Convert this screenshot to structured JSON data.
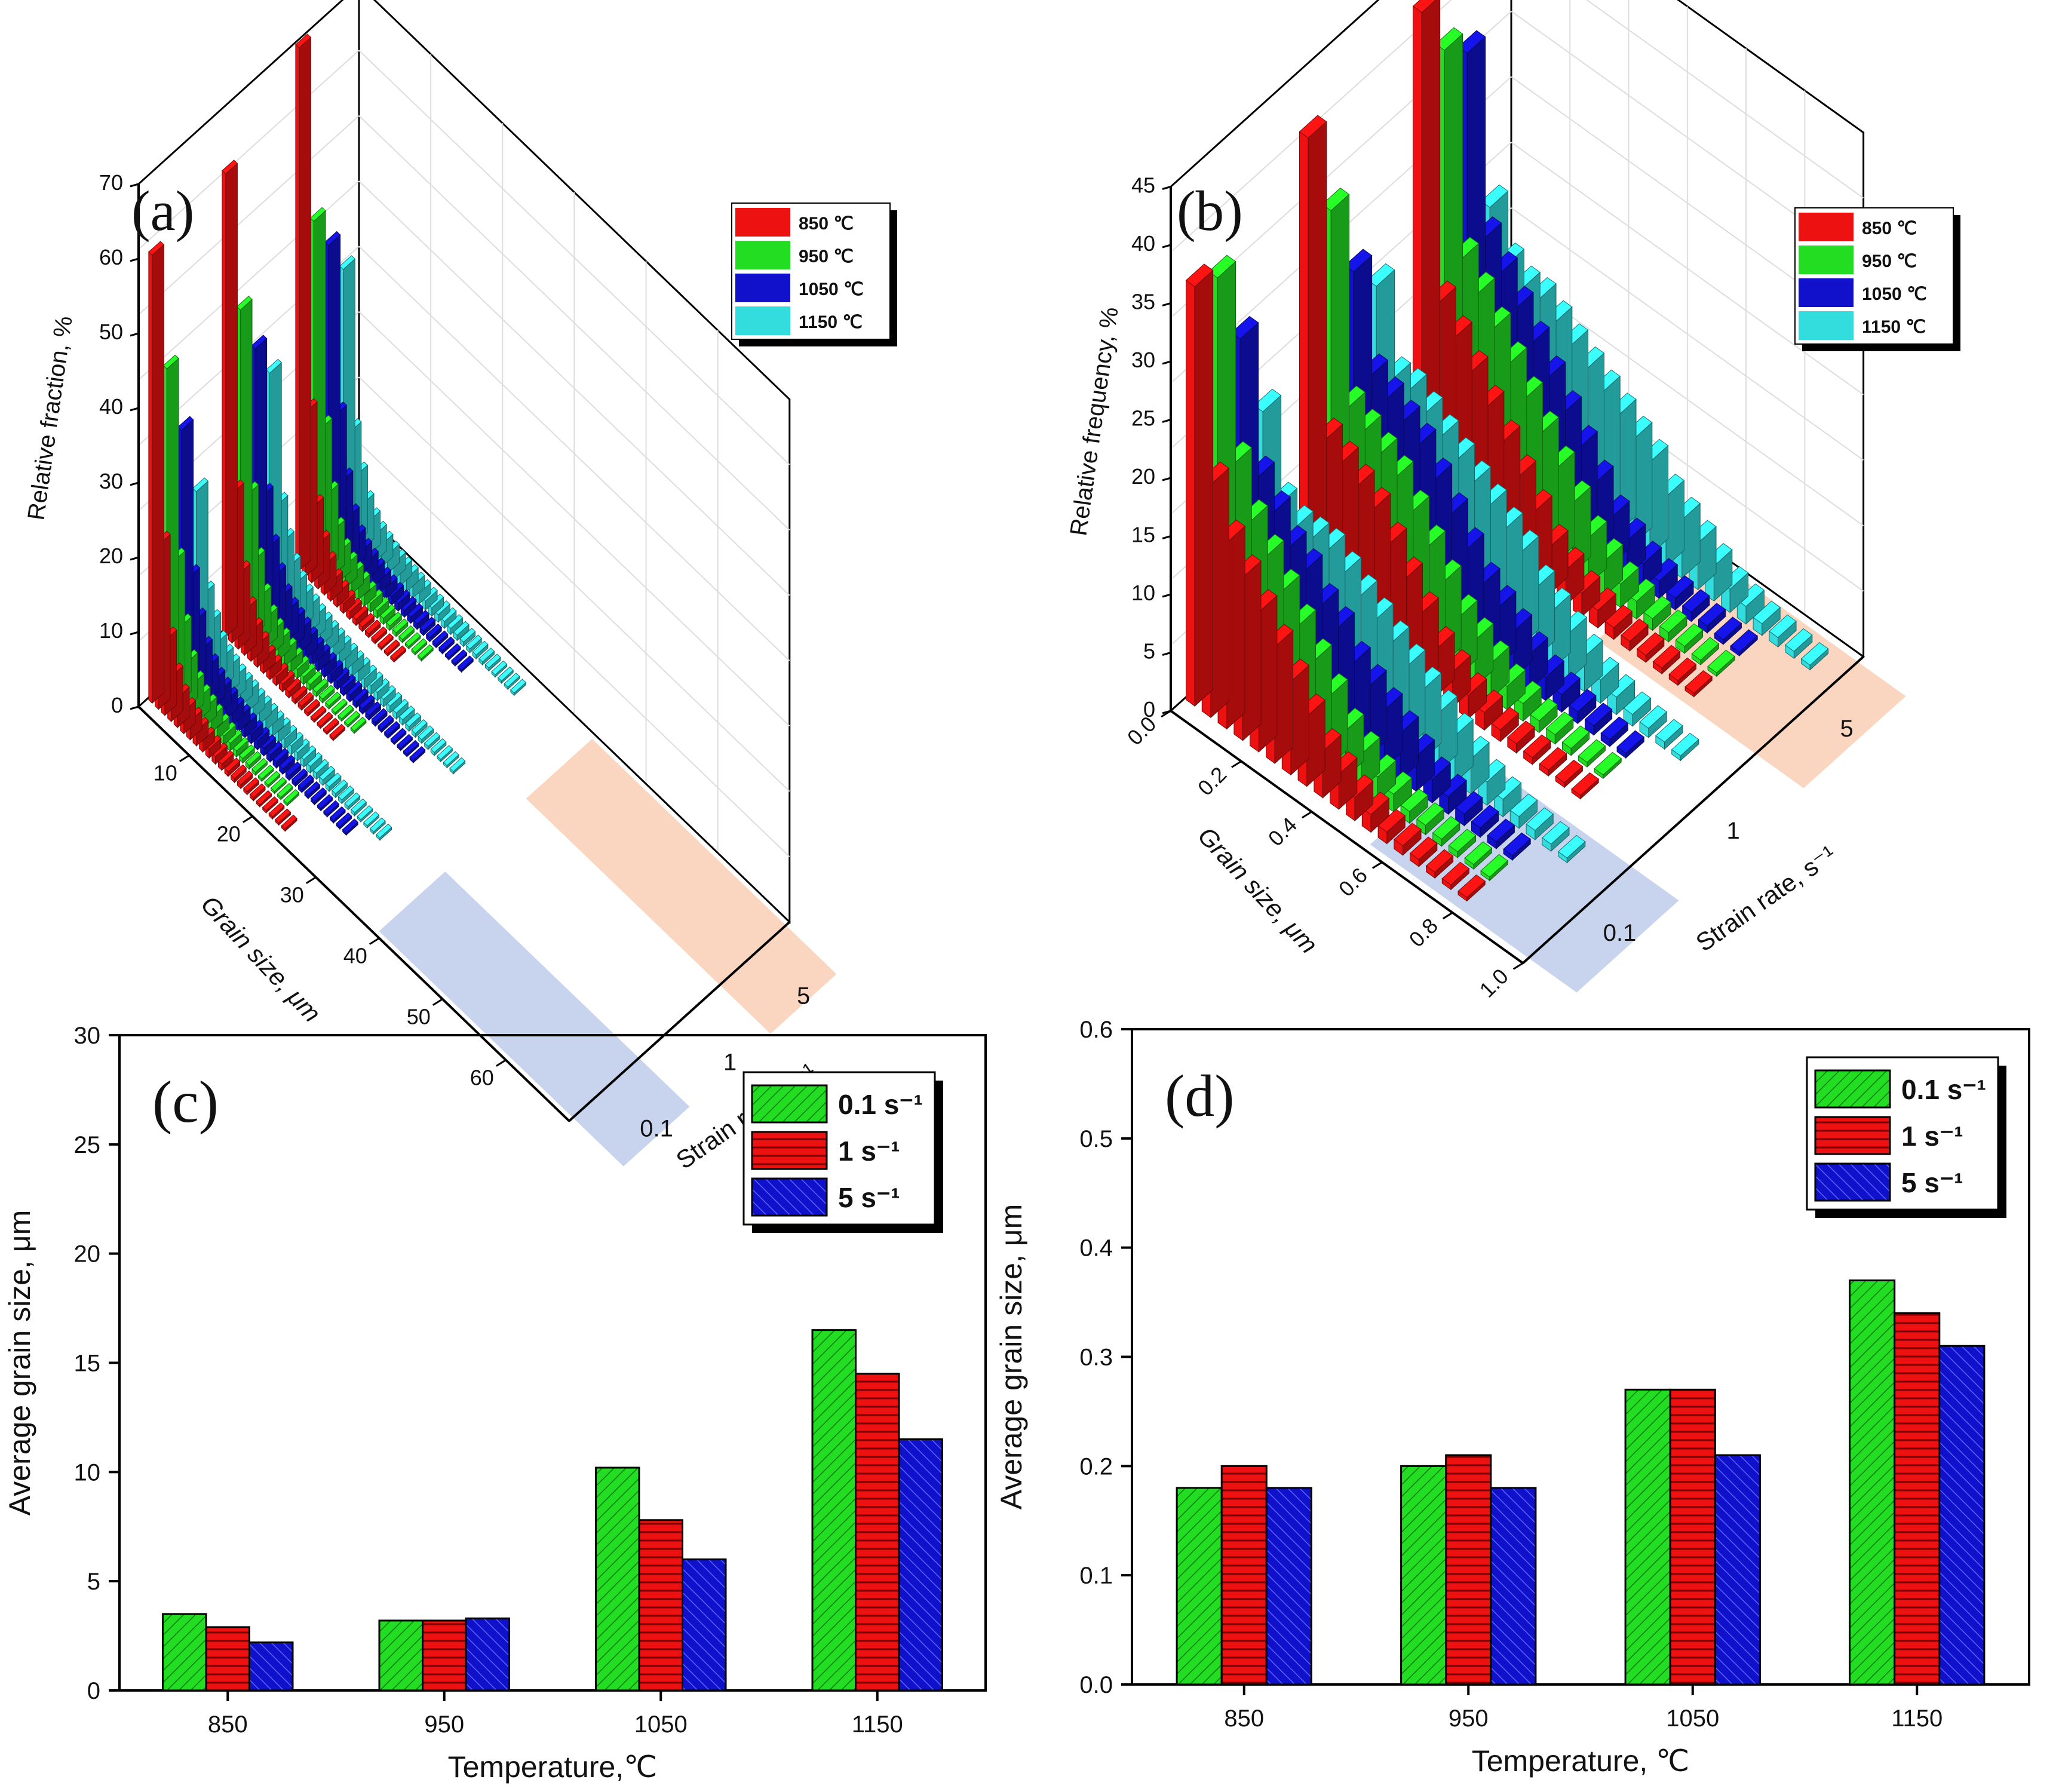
{
  "colors": {
    "green": "#22dd22",
    "red": "#ee1111",
    "blue": "#1111cc",
    "cyan": "#33dddd",
    "blue_plane": "#9aaedf",
    "orange_plane": "#f6b48c"
  },
  "chart_data": [
    {
      "panel_label": "(a)",
      "type": "bar3d",
      "zlabel": "Relative fraction, %",
      "xlabel": "Grain size, μm",
      "ylabel": "Strain rate, s⁻¹",
      "z_ticks": [
        "0",
        "10",
        "20",
        "30",
        "40",
        "50",
        "60",
        "70"
      ],
      "x_ticks": [
        "10",
        "20",
        "30",
        "40",
        "50",
        "60"
      ],
      "y_ticks": [
        "0.1",
        "1",
        "5"
      ],
      "zlim": [
        0,
        70
      ],
      "xlim": [
        0,
        65
      ],
      "legend": [
        "850 ℃",
        "950 ℃",
        "1050 ℃",
        "1150 ℃"
      ],
      "bin_width": 1,
      "series": [
        {
          "name": "850 ℃",
          "strain_rate": "0.1",
          "values": [
            60,
            22,
            10,
            6,
            4,
            3,
            2.5,
            2,
            1.5,
            1.2,
            1,
            0.8,
            0.6,
            0.5,
            0.5,
            0.4,
            0.4,
            0.3,
            0.3,
            0.3,
            0.2,
            0.2
          ]
        },
        {
          "name": "950 ℃",
          "strain_rate": "0.1",
          "values": [
            43,
            18,
            10,
            6,
            4,
            3,
            2.5,
            2,
            1.5,
            1.2,
            1,
            0.8,
            0.6,
            0.5,
            0.4,
            0.3,
            0.3,
            0.3,
            0.2,
            0.2
          ]
        },
        {
          "name": "1050 ℃",
          "strain_rate": "0.1",
          "values": [
            33,
            14,
            9,
            6,
            4.5,
            3.5,
            3,
            2.5,
            2,
            1.8,
            1.5,
            1.3,
            1.2,
            1,
            0.9,
            0.8,
            0.7,
            0.6,
            0.5,
            0.5,
            0.4,
            0.4,
            0.3,
            0.3,
            0.3,
            0.2,
            0.2
          ]
        },
        {
          "name": "1150 ℃",
          "strain_rate": "0.1",
          "values": [
            23,
            10,
            7,
            5,
            4,
            3.5,
            3,
            2.7,
            2.5,
            2.2,
            2,
            1.8,
            1.6,
            1.5,
            1.3,
            1.2,
            1.1,
            1,
            0.9,
            0.8,
            0.7,
            0.6,
            0.5,
            0.5,
            0.4,
            0.4,
            0.3,
            0.3,
            0.2,
            0.2
          ]
        },
        {
          "name": "850 ℃",
          "strain_rate": "1",
          "values": [
            62,
            20,
            10,
            6,
            4,
            3,
            2,
            1.5,
            1.2,
            1,
            0.8,
            0.6,
            0.5,
            0.4,
            0.3,
            0.3,
            0.2,
            0.2
          ]
        },
        {
          "name": "950 ℃",
          "strain_rate": "1",
          "values": [
            42,
            18,
            10,
            6,
            4,
            3,
            2.5,
            2,
            1.5,
            1.2,
            1,
            0.8,
            0.6,
            0.5,
            0.4,
            0.3,
            0.3,
            0.2,
            0.2
          ]
        },
        {
          "name": "1050 ℃",
          "strain_rate": "1",
          "values": [
            35,
            16,
            10,
            7,
            5,
            4,
            3.5,
            3,
            2.5,
            2,
            1.8,
            1.5,
            1.3,
            1.1,
            1,
            0.9,
            0.8,
            0.7,
            0.6,
            0.5,
            0.4,
            0.4,
            0.3,
            0.3,
            0.2,
            0.2
          ]
        },
        {
          "name": "1150 ℃",
          "strain_rate": "1",
          "values": [
            30,
            13,
            9,
            6.5,
            5,
            4,
            3.5,
            3,
            2.7,
            2.4,
            2.2,
            2,
            1.8,
            1.6,
            1.5,
            1.3,
            1.2,
            1.1,
            1,
            0.9,
            0.8,
            0.7,
            0.6,
            0.5,
            0.5,
            0.4,
            0.4,
            0.3,
            0.3,
            0.2
          ]
        },
        {
          "name": "850 ℃",
          "strain_rate": "5",
          "values": [
            70,
            22,
            10,
            6,
            4,
            2.5,
            1.8,
            1.3,
            1,
            0.8,
            0.6,
            0.5,
            0.4,
            0.3,
            0.3,
            0.2
          ]
        },
        {
          "name": "950 ℃",
          "strain_rate": "5",
          "values": [
            45,
            18,
            10,
            6,
            4,
            3,
            2.5,
            2,
            1.5,
            1.2,
            1,
            0.8,
            0.6,
            0.5,
            0.4,
            0.3,
            0.3,
            0.2
          ]
        },
        {
          "name": "1050 ℃",
          "strain_rate": "5",
          "values": [
            40,
            18,
            10,
            6,
            4,
            3,
            2.5,
            2,
            1.6,
            1.4,
            1.2,
            1,
            0.9,
            0.8,
            0.7,
            0.6,
            0.5,
            0.4,
            0.4,
            0.3,
            0.3,
            0.2
          ]
        },
        {
          "name": "1150 ℃",
          "strain_rate": "5",
          "values": [
            35,
            14,
            9,
            6,
            4.5,
            3.5,
            3,
            2.5,
            2.2,
            2,
            1.8,
            1.6,
            1.4,
            1.2,
            1.1,
            1,
            0.9,
            0.8,
            0.7,
            0.6,
            0.5,
            0.5,
            0.4,
            0.4,
            0.3,
            0.3,
            0.2,
            0.2
          ]
        }
      ]
    },
    {
      "panel_label": "(b)",
      "type": "bar3d",
      "zlabel": "Relative frequency, %",
      "xlabel": "Grain size,  μm",
      "ylabel": "Strain rate, s⁻¹",
      "z_ticks": [
        "0",
        "5",
        "10",
        "15",
        "20",
        "25",
        "30",
        "35",
        "40",
        "45"
      ],
      "x_ticks": [
        "0.0",
        "0.2",
        "0.4",
        "0.6",
        "0.8",
        "1.0"
      ],
      "y_ticks": [
        "0.1",
        "1",
        "5"
      ],
      "zlim": [
        0,
        45
      ],
      "xlim": [
        0,
        1.0
      ],
      "legend": [
        "850 ℃",
        "950 ℃",
        "1050 ℃",
        "1150 ℃"
      ],
      "bin_width": 0.05,
      "series": [
        {
          "name": "850 ℃",
          "strain_rate": "0.1",
          "values": [
            36,
            20,
            16,
            14,
            12,
            10,
            8,
            6,
            4,
            3,
            2,
            1.5,
            1,
            0.8,
            0.6,
            0.5,
            0.4,
            0.3
          ]
        },
        {
          "name": "950 ℃",
          "strain_rate": "0.1",
          "values": [
            35,
            20,
            16,
            14,
            12,
            10,
            8,
            6,
            4,
            3,
            2,
            1.5,
            1,
            0.8,
            0.6,
            0.5,
            0.4,
            0.3
          ]
        },
        {
          "name": "1050 ℃",
          "strain_rate": "0.1",
          "values": [
            28,
            17,
            15,
            13,
            12,
            10,
            9,
            7,
            6,
            5,
            4,
            3,
            2,
            1.5,
            1,
            0.8,
            0.6,
            0.4
          ]
        },
        {
          "name": "1150 ℃",
          "strain_rate": "0.1",
          "values": [
            20,
            13,
            12,
            12,
            12,
            11,
            10,
            9,
            8,
            7,
            6,
            5,
            4,
            3,
            2,
            1.5,
            1,
            0.8,
            0.6,
            0.4
          ]
        },
        {
          "name": "850 ℃",
          "strain_rate": "1",
          "values": [
            40,
            15,
            14,
            13,
            12,
            10,
            8,
            6,
            4,
            3,
            2,
            1.5,
            1,
            0.8,
            0.6,
            0.5,
            0.4,
            0.3
          ]
        },
        {
          "name": "950 ℃",
          "strain_rate": "1",
          "values": [
            32,
            16,
            15,
            14,
            13,
            11,
            9,
            7,
            5,
            4,
            3,
            2,
            1.5,
            1,
            0.8,
            0.6,
            0.4,
            0.3
          ]
        },
        {
          "name": "1050 ℃",
          "strain_rate": "1",
          "values": [
            25,
            17,
            16,
            15,
            14,
            12,
            10,
            8,
            6,
            5,
            4,
            3,
            2,
            1.5,
            1,
            0.8,
            0.6,
            0.4
          ]
        },
        {
          "name": "1150 ℃",
          "strain_rate": "1",
          "values": [
            22,
            15,
            15,
            14,
            13,
            12,
            11,
            10,
            9,
            8,
            6,
            5,
            4,
            3,
            2,
            1.5,
            1,
            0.8,
            0.6,
            0.4
          ]
        },
        {
          "name": "850 ℃",
          "strain_rate": "5",
          "values": [
            42,
            18,
            16,
            14,
            12,
            10,
            8,
            6,
            4,
            3,
            2,
            1.5,
            1,
            0.8,
            0.6,
            0.5,
            0.4,
            0.3
          ]
        },
        {
          "name": "950 ℃",
          "strain_rate": "5",
          "values": [
            37,
            20,
            18,
            16,
            14,
            12,
            10,
            8,
            6,
            4,
            3,
            2,
            1.5,
            1,
            0.8,
            0.6,
            0.4,
            0.3
          ]
        },
        {
          "name": "1050 ℃",
          "strain_rate": "5",
          "values": [
            35,
            20,
            18,
            16,
            14,
            12,
            10,
            8,
            6,
            4,
            3,
            2,
            1.5,
            1,
            0.8,
            0.6,
            0.4,
            0.3
          ]
        },
        {
          "name": "1150 ℃",
          "strain_rate": "5",
          "values": [
            20,
            16,
            15,
            15,
            14,
            13,
            12,
            11,
            10,
            9,
            8,
            6,
            5,
            4,
            3,
            2,
            1.5,
            1,
            0.8,
            0.6,
            0.4
          ]
        }
      ]
    },
    {
      "panel_label": "(c)",
      "type": "bar",
      "xlabel": "Temperature,℃",
      "ylabel": "Average grain size, μm",
      "categories": [
        "850",
        "950",
        "1050",
        "1150"
      ],
      "ylim": [
        0,
        30
      ],
      "y_ticks": [
        "0",
        "5",
        "10",
        "15",
        "20",
        "25",
        "30"
      ],
      "legend_position": "top-right",
      "series": [
        {
          "name": "0.1 s⁻¹",
          "values": [
            3.5,
            3.2,
            10.2,
            16.5
          ]
        },
        {
          "name": "1 s⁻¹",
          "values": [
            2.9,
            3.2,
            7.8,
            14.5
          ]
        },
        {
          "name": "5 s⁻¹",
          "values": [
            2.2,
            3.3,
            6.0,
            11.5
          ]
        }
      ]
    },
    {
      "panel_label": "(d)",
      "type": "bar",
      "xlabel": "Temperature, ℃",
      "ylabel": "Average grain size, μm",
      "categories": [
        "850",
        "950",
        "1050",
        "1150"
      ],
      "ylim": [
        0,
        0.6
      ],
      "y_ticks": [
        "0.0",
        "0.1",
        "0.2",
        "0.3",
        "0.4",
        "0.5",
        "0.6"
      ],
      "legend_position": "top-right",
      "series": [
        {
          "name": "0.1 s⁻¹",
          "values": [
            0.18,
            0.2,
            0.27,
            0.37
          ]
        },
        {
          "name": "1 s⁻¹",
          "values": [
            0.2,
            0.21,
            0.27,
            0.34
          ]
        },
        {
          "name": "5 s⁻¹",
          "values": [
            0.18,
            0.18,
            0.21,
            0.31
          ]
        }
      ]
    }
  ]
}
